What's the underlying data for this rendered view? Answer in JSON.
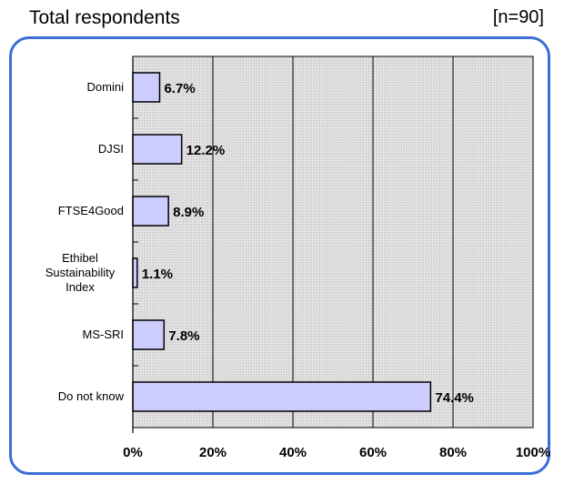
{
  "header": {
    "title": "Total respondents",
    "n_label": "[n=90]"
  },
  "chart_data": {
    "type": "bar",
    "orientation": "horizontal",
    "categories": [
      [
        "Domini"
      ],
      [
        "DJSI"
      ],
      [
        "FTSE4Good"
      ],
      [
        "Ethibel",
        "Sustainability",
        "Index"
      ],
      [
        "MS-SRI"
      ],
      [
        "Do not know"
      ]
    ],
    "values": [
      6.7,
      12.2,
      8.9,
      1.1,
      7.8,
      74.4
    ],
    "value_labels": [
      "6.7%",
      "12.2%",
      "8.9%",
      "1.1%",
      "7.8%",
      "74.4%"
    ],
    "xlim": [
      0,
      100
    ],
    "x_ticks": [
      "0%",
      "20%",
      "40%",
      "60%",
      "80%",
      "100%"
    ],
    "grid": true,
    "colors": {
      "bar_fill": "#ccccff",
      "bar_stroke": "#000000",
      "plot_bg": "#dcdcdc",
      "frame": "#3b6fd4"
    }
  }
}
